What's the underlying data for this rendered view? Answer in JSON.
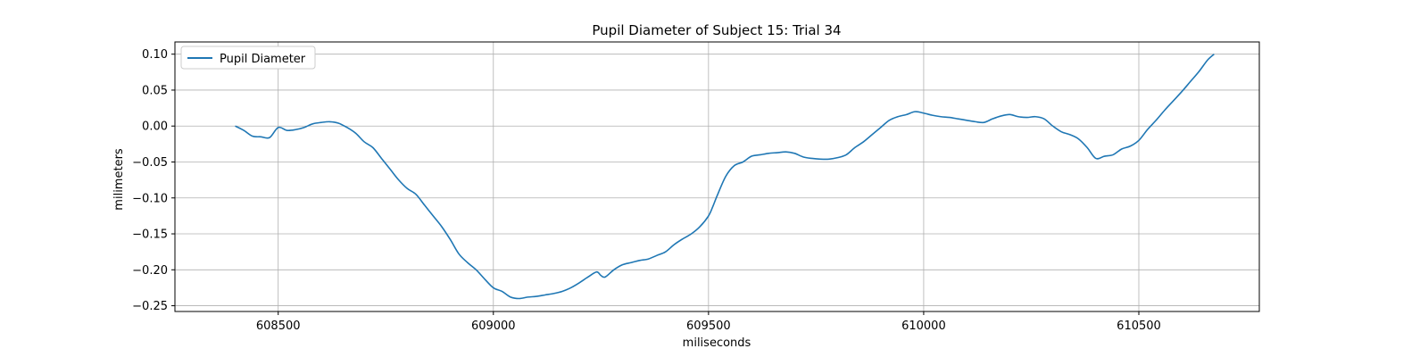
{
  "chart_data": {
    "type": "line",
    "title": "Pupil Diameter of Subject 15: Trial 34",
    "xlabel": "miliseconds",
    "ylabel": "milimeters",
    "xlim": [
      608260,
      610780
    ],
    "ylim": [
      -0.258,
      0.117
    ],
    "x_ticks": [
      608500,
      609000,
      609500,
      610000,
      610500
    ],
    "x_tick_labels": [
      "608500",
      "609000",
      "609500",
      "610000",
      "610500"
    ],
    "y_ticks": [
      0.1,
      0.05,
      0.0,
      -0.05,
      -0.1,
      -0.15,
      -0.2,
      -0.25
    ],
    "y_tick_labels": [
      "0.10",
      "0.05",
      "0.00",
      "−0.05",
      "−0.10",
      "−0.15",
      "−0.20",
      "−0.25"
    ],
    "grid": true,
    "legend": {
      "location": "upper left",
      "entries": [
        "Pupil Diameter"
      ]
    },
    "series": [
      {
        "name": "Pupil Diameter",
        "color": "#1f77b4",
        "x": [
          608400,
          608420,
          608440,
          608460,
          608480,
          608500,
          608520,
          608540,
          608560,
          608580,
          608600,
          608620,
          608640,
          608660,
          608680,
          608700,
          608720,
          608740,
          608760,
          608780,
          608800,
          608820,
          608840,
          608860,
          608880,
          608900,
          608920,
          608940,
          608960,
          608980,
          609000,
          609020,
          609040,
          609060,
          609080,
          609100,
          609120,
          609140,
          609160,
          609180,
          609200,
          609220,
          609240,
          609250,
          609260,
          609280,
          609300,
          609320,
          609340,
          609360,
          609380,
          609400,
          609420,
          609440,
          609460,
          609480,
          609500,
          609510,
          609520,
          609540,
          609560,
          609580,
          609600,
          609620,
          609640,
          609660,
          609680,
          609700,
          609720,
          609740,
          609760,
          609780,
          609800,
          609820,
          609840,
          609860,
          609880,
          609900,
          609920,
          609940,
          609960,
          609980,
          610000,
          610020,
          610040,
          610060,
          610080,
          610100,
          610120,
          610140,
          610160,
          610180,
          610200,
          610220,
          610240,
          610260,
          610280,
          610300,
          610320,
          610340,
          610360,
          610380,
          610400,
          610420,
          610440,
          610460,
          610480,
          610500,
          610520,
          610540,
          610560,
          610580,
          610600,
          610620,
          610640,
          610660,
          610675
        ],
        "values": [
          0.0,
          -0.006,
          -0.014,
          -0.015,
          -0.016,
          -0.002,
          -0.006,
          -0.005,
          -0.002,
          0.003,
          0.005,
          0.006,
          0.004,
          -0.002,
          -0.01,
          -0.022,
          -0.03,
          -0.045,
          -0.06,
          -0.075,
          -0.087,
          -0.095,
          -0.11,
          -0.125,
          -0.14,
          -0.158,
          -0.178,
          -0.19,
          -0.2,
          -0.213,
          -0.225,
          -0.23,
          -0.238,
          -0.24,
          -0.238,
          -0.237,
          -0.235,
          -0.233,
          -0.23,
          -0.225,
          -0.218,
          -0.21,
          -0.203,
          -0.208,
          -0.21,
          -0.2,
          -0.193,
          -0.19,
          -0.187,
          -0.185,
          -0.18,
          -0.175,
          -0.165,
          -0.157,
          -0.15,
          -0.14,
          -0.125,
          -0.112,
          -0.097,
          -0.07,
          -0.055,
          -0.05,
          -0.042,
          -0.04,
          -0.038,
          -0.037,
          -0.036,
          -0.038,
          -0.043,
          -0.045,
          -0.046,
          -0.046,
          -0.044,
          -0.04,
          -0.03,
          -0.022,
          -0.012,
          -0.002,
          0.008,
          0.013,
          0.016,
          0.02,
          0.018,
          0.015,
          0.013,
          0.012,
          0.01,
          0.008,
          0.006,
          0.005,
          0.01,
          0.014,
          0.016,
          0.013,
          0.012,
          0.013,
          0.01,
          0.0,
          -0.008,
          -0.012,
          -0.018,
          -0.03,
          -0.045,
          -0.042,
          -0.04,
          -0.032,
          -0.028,
          -0.02,
          -0.005,
          0.008,
          0.022,
          0.035,
          0.048,
          0.062,
          0.076,
          0.092,
          0.1
        ]
      }
    ]
  }
}
